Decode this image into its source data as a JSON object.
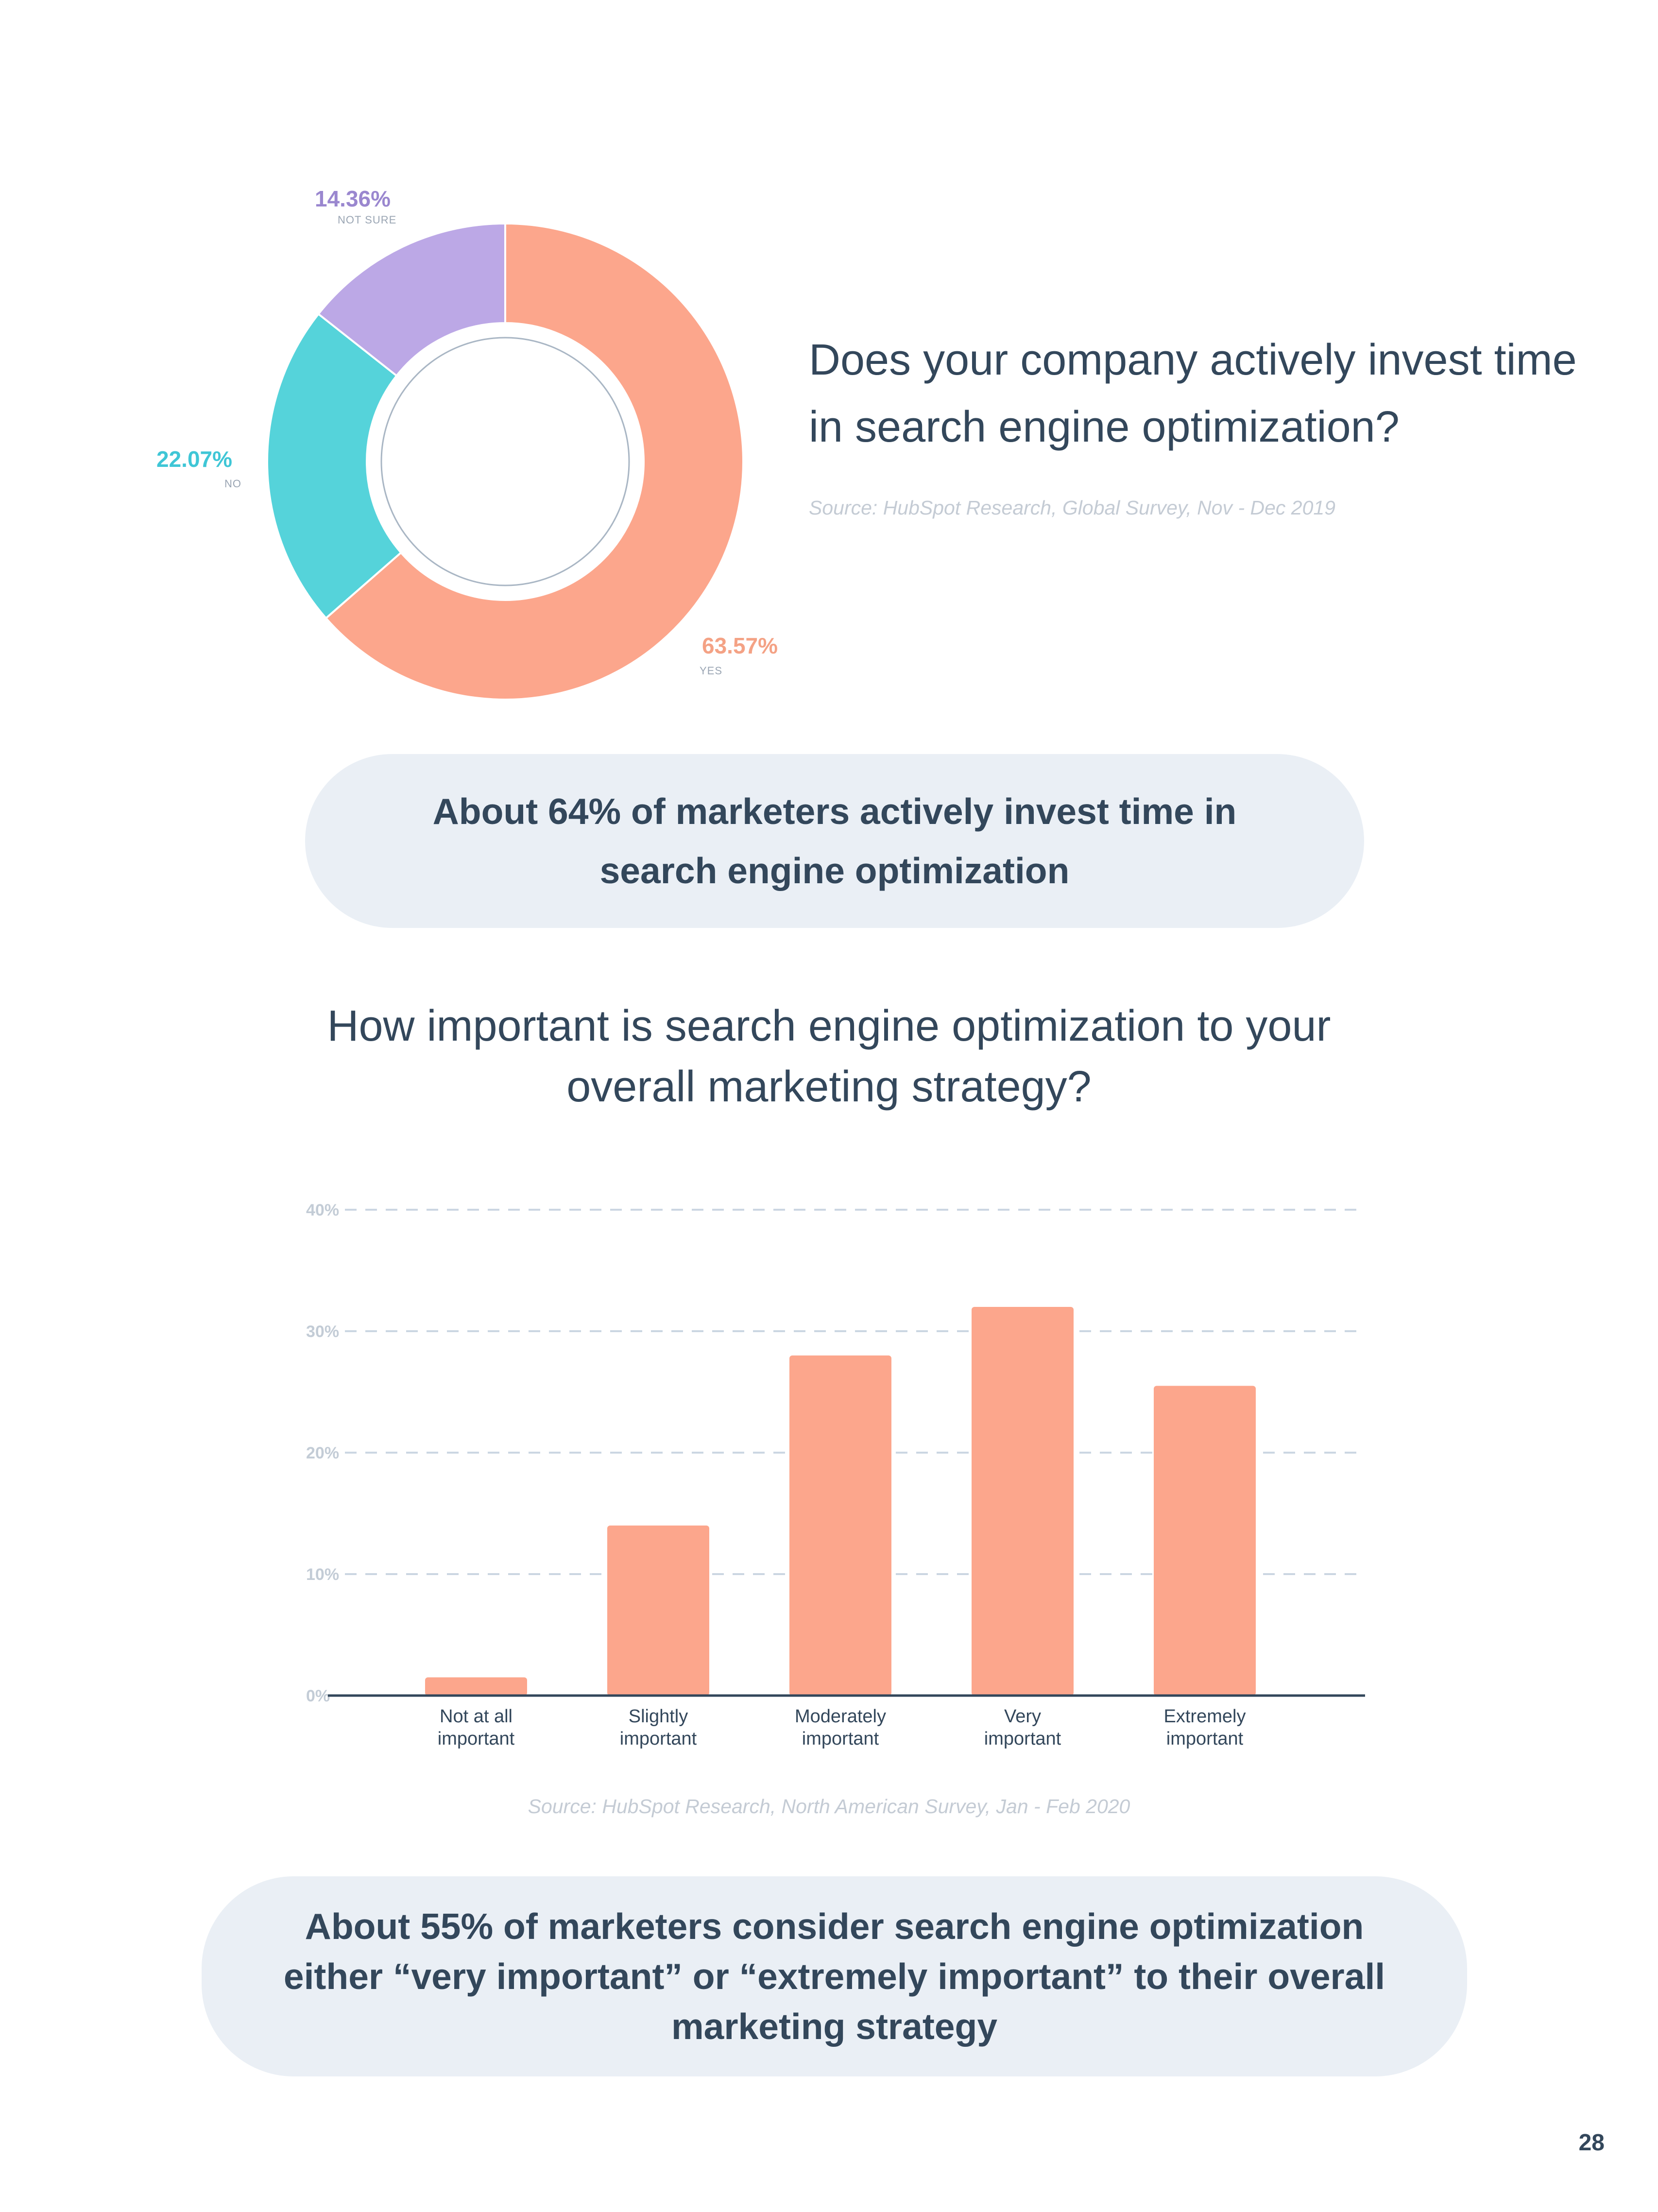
{
  "donut": {
    "question": "Does your company actively invest time in search engine optimization?",
    "source": "Source: HubSpot Research, Global Survey, Nov - Dec 2019",
    "labels": [
      {
        "value": "63.57%",
        "name": "YES"
      },
      {
        "value": "22.07%",
        "name": "NO"
      },
      {
        "value": "14.36%",
        "name": "NOT SURE"
      }
    ]
  },
  "callout1": "About 64% of marketers actively invest time in search engine optimization",
  "bar": {
    "question": "How important is search engine optimization to your overall marketing strategy?",
    "source": "Source: HubSpot Research, North American Survey, Jan - Feb 2020",
    "category_lines": [
      [
        "Not at all",
        "important"
      ],
      [
        "Slightly",
        "important"
      ],
      [
        "Moderately",
        "important"
      ],
      [
        "Very",
        "important"
      ],
      [
        "Extremely",
        "important"
      ]
    ]
  },
  "callout2": "About 55% of marketers consider search engine optimization either “very important” or “extremely important” to their overall marketing strategy",
  "page_number": "28",
  "chart_data": [
    {
      "type": "pie",
      "style": "donut",
      "categories": [
        "YES",
        "NO",
        "NOT SURE"
      ],
      "values": [
        63.57,
        22.07,
        14.36
      ],
      "colors": [
        "#fca68c",
        "#55d3da",
        "#bca8e6"
      ],
      "title": "Does your company actively invest time in search engine optimization?"
    },
    {
      "type": "bar",
      "categories": [
        "Not at all important",
        "Slightly important",
        "Moderately important",
        "Very important",
        "Extremely important"
      ],
      "values": [
        1.5,
        14,
        28,
        32,
        25.5
      ],
      "color": "#fca68c",
      "ylim": [
        0,
        40
      ],
      "yticks": [
        "0%",
        "10%",
        "20%",
        "30%",
        "40%"
      ],
      "grid": true,
      "title": "How important is search engine optimization to your overall marketing strategy?",
      "xlabel": "",
      "ylabel": ""
    }
  ]
}
